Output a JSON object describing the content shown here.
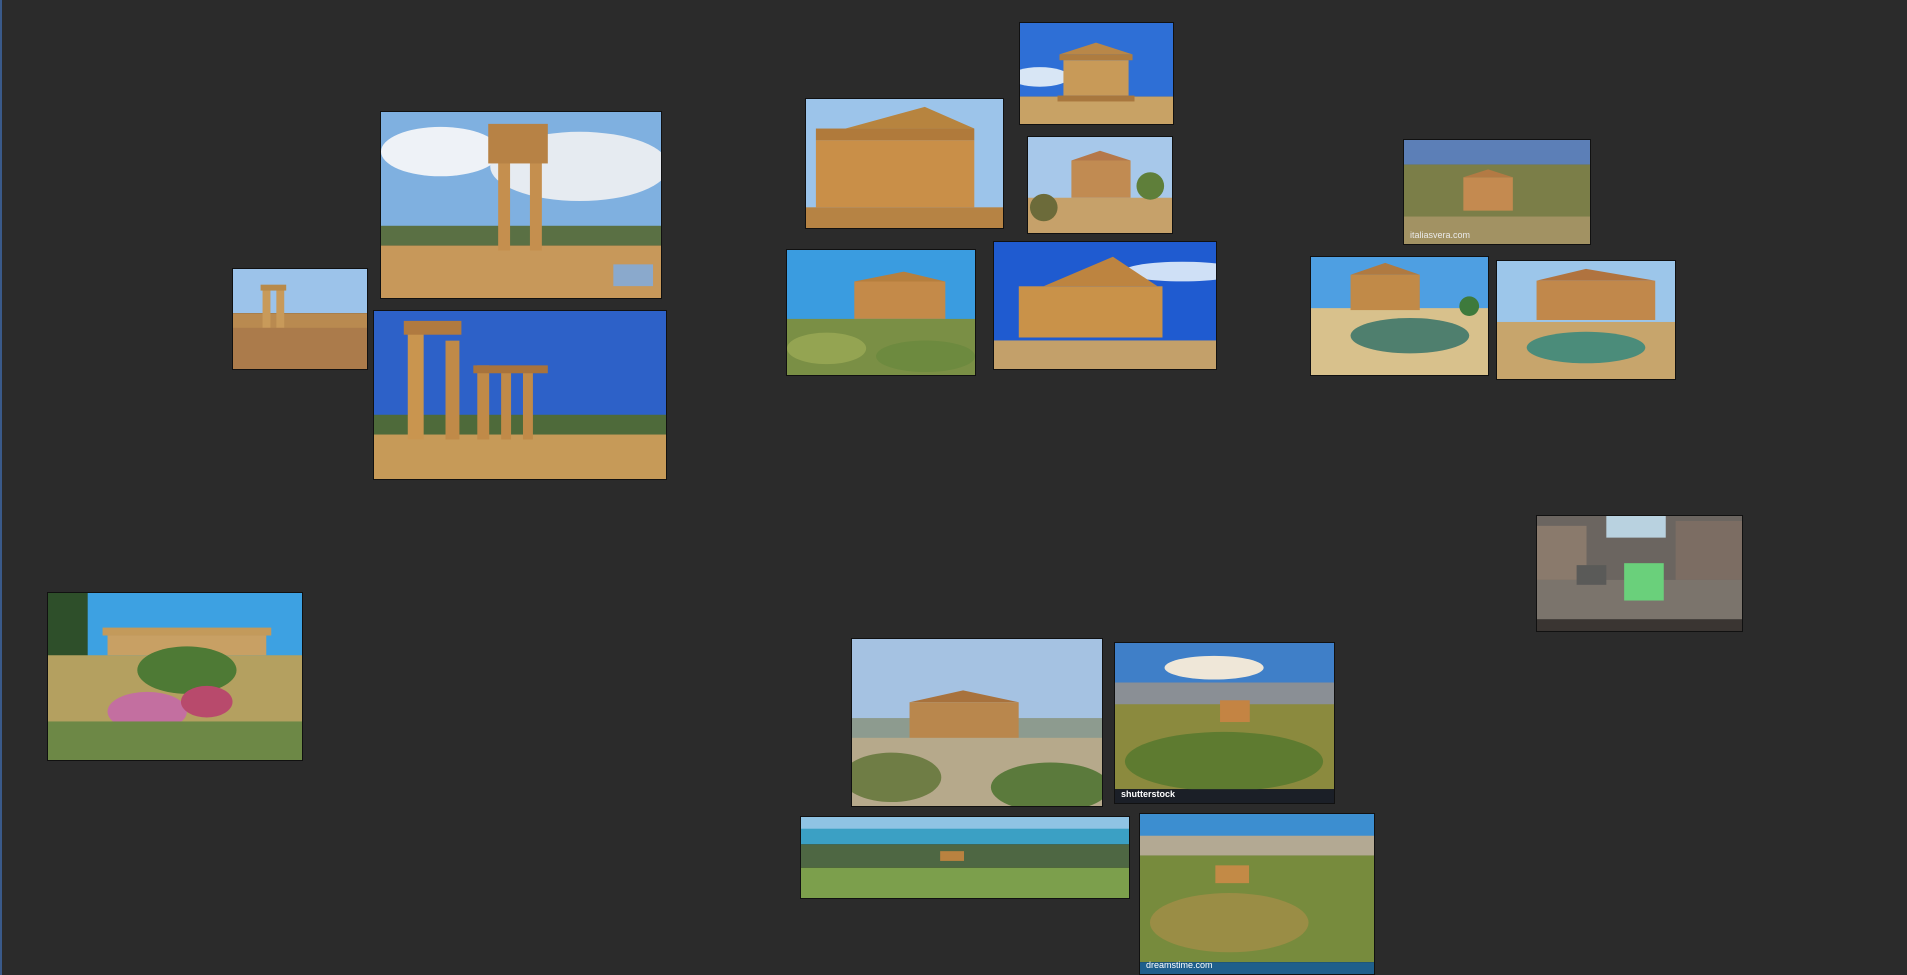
{
  "board": {
    "watermark_shutterstock": "shutterstock",
    "watermark_dreamstime": "dreamstime.com",
    "watermark_holidays": "italiasvera.com"
  },
  "colors": {
    "background": "#2b2b2b",
    "sky": "#4a8fd8",
    "stone": "#c8964f",
    "foliage": "#5f7f3a"
  }
}
